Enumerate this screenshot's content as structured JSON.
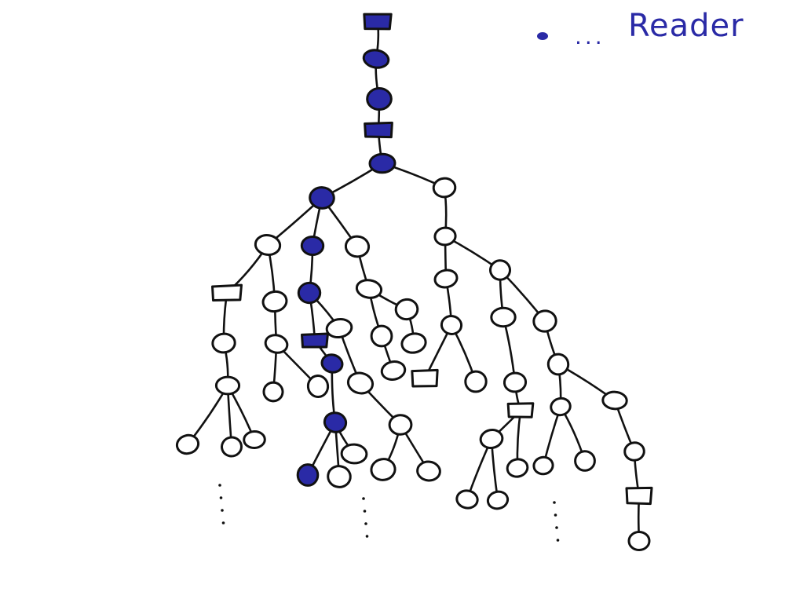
{
  "legend": {
    "marker_color": "#2a2aa6",
    "ellipsis": "...",
    "label": "Reader"
  },
  "colors": {
    "ink": "#111111",
    "highlight": "#2a2aa6",
    "empty_fill": "#ffffff"
  },
  "tree": {
    "node_shapes": [
      "circle",
      "square"
    ],
    "highlighted_path_meaning": "",
    "continuation_marks": "⋮"
  }
}
